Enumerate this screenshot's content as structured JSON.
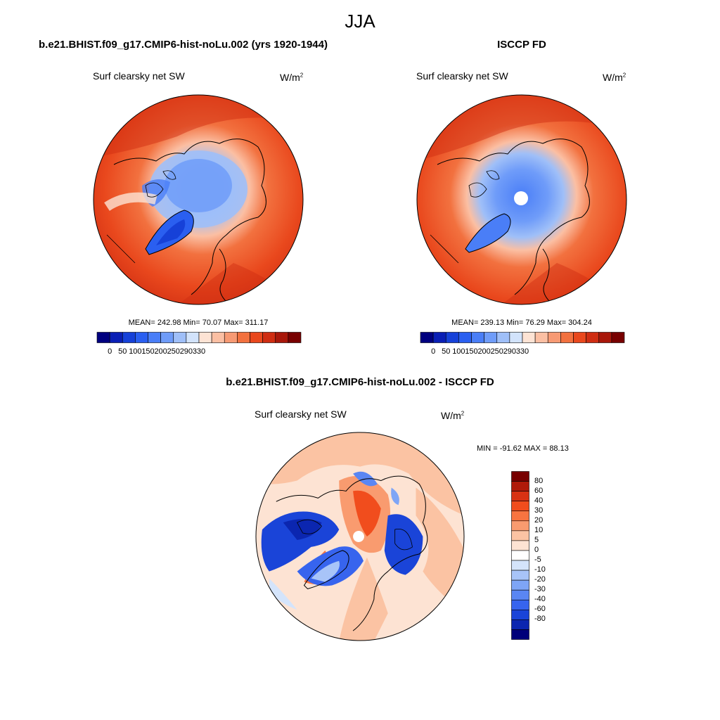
{
  "season": "JJA",
  "panels": [
    {
      "title": "b.e21.BHIST.f09_g17.CMIP6-hist-noLu.002 (yrs 1920-1944)",
      "variable": "Surf clearsky net SW",
      "units_base": "W/m",
      "units_exp": "2",
      "stats": "MEAN= 242.98  Min=  70.07  Max= 311.17"
    },
    {
      "title": "ISCCP FD",
      "variable": "Surf clearsky net SW",
      "units_base": "W/m",
      "units_exp": "2",
      "stats": "MEAN= 239.13  Min=  76.29  Max= 304.24"
    }
  ],
  "diff_panel": {
    "title": "b.e21.BHIST.f09_g17.CMIP6-hist-noLu.002 - ISCCP FD",
    "variable": "Surf clearsky net SW",
    "units_base": "W/m",
    "units_exp": "2",
    "minmax": "MIN = -91.62 MAX =  88.13"
  },
  "colorbar_abs": {
    "colors": [
      "#00007f",
      "#0a1fb5",
      "#1641d8",
      "#2a5ff0",
      "#4a7ef7",
      "#6f9cf9",
      "#9fbff8",
      "#d2e3fb",
      "#fde3d4",
      "#fbbfa3",
      "#f79a74",
      "#f2713f",
      "#e9481d",
      "#cf2d12",
      "#a8170a",
      "#780000"
    ],
    "tick_labels": [
      "0",
      "50",
      "100",
      "150",
      "200",
      "250",
      "290",
      "330"
    ]
  },
  "colorbar_diff": {
    "colors": [
      "#780000",
      "#b01a0a",
      "#d83213",
      "#f14d1d",
      "#f87440",
      "#f99b6f",
      "#fbc3a3",
      "#fde3d3",
      "#ffffff",
      "#d4e4fb",
      "#a8c4f8",
      "#7ea5f6",
      "#5a86f3",
      "#3764ee",
      "#1a44d8",
      "#0b26b0",
      "#00007a"
    ],
    "tick_labels": [
      "80",
      "60",
      "40",
      "30",
      "20",
      "10",
      "5",
      "0",
      "-5",
      "-10",
      "-20",
      "-30",
      "-40",
      "-60",
      "-80"
    ]
  }
}
